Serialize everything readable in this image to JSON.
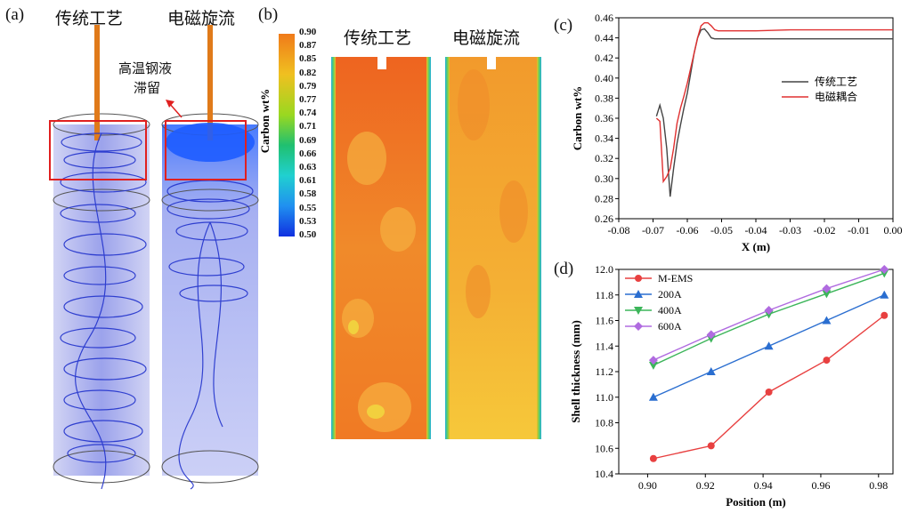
{
  "panels": {
    "a": {
      "label": "(a)",
      "col_left": "传统工艺",
      "col_right": "电磁旋流",
      "annotation_line1": "高温钢液",
      "annotation_line2": "滞留"
    },
    "b": {
      "label": "(b)",
      "col_left": "传统工艺",
      "col_right": "电磁旋流",
      "colorbar_title": "Carbon wt%",
      "colorbar_ticks": [
        "0.90",
        "0.87",
        "0.85",
        "0.82",
        "0.79",
        "0.77",
        "0.74",
        "0.71",
        "0.69",
        "0.66",
        "0.63",
        "0.61",
        "0.58",
        "0.55",
        "0.53",
        "0.50"
      ]
    },
    "c": {
      "label": "(c)"
    },
    "d": {
      "label": "(d)"
    }
  },
  "chart_data": [
    {
      "id": "c",
      "type": "line",
      "xlabel": "X (m)",
      "ylabel": "Carbon wt%",
      "xlim": [
        -0.08,
        0.0
      ],
      "ylim": [
        0.26,
        0.46
      ],
      "xticks": [
        "-0.08",
        "-0.07",
        "-0.06",
        "-0.05",
        "-0.04",
        "-0.03",
        "-0.02",
        "-0.01",
        "0.00"
      ],
      "yticks": [
        "0.26",
        "0.28",
        "0.30",
        "0.32",
        "0.34",
        "0.36",
        "0.38",
        "0.40",
        "0.42",
        "0.44",
        "0.46"
      ],
      "legend_position": "center-right",
      "series": [
        {
          "name": "传统工艺",
          "color": "#444444",
          "x": [
            -0.069,
            -0.068,
            -0.067,
            -0.066,
            -0.065,
            -0.064,
            -0.063,
            -0.062,
            -0.061,
            -0.06,
            -0.059,
            -0.058,
            -0.057,
            -0.056,
            -0.055,
            -0.054,
            -0.053,
            -0.052,
            -0.051,
            -0.05,
            -0.045,
            -0.04,
            -0.03,
            -0.02,
            -0.01,
            0.0
          ],
          "y": [
            0.362,
            0.373,
            0.36,
            0.33,
            0.282,
            0.31,
            0.335,
            0.353,
            0.37,
            0.385,
            0.405,
            0.425,
            0.44,
            0.448,
            0.449,
            0.445,
            0.44,
            0.439,
            0.439,
            0.439,
            0.439,
            0.439,
            0.439,
            0.439,
            0.439,
            0.439
          ]
        },
        {
          "name": "电磁耦合",
          "color": "#e03030",
          "x": [
            -0.069,
            -0.068,
            -0.067,
            -0.066,
            -0.065,
            -0.064,
            -0.063,
            -0.062,
            -0.061,
            -0.06,
            -0.059,
            -0.058,
            -0.057,
            -0.056,
            -0.055,
            -0.054,
            -0.053,
            -0.052,
            -0.051,
            -0.05,
            -0.045,
            -0.04,
            -0.03,
            -0.02,
            -0.01,
            0.0
          ],
          "y": [
            0.36,
            0.357,
            0.297,
            0.302,
            0.31,
            0.33,
            0.355,
            0.37,
            0.382,
            0.395,
            0.41,
            0.425,
            0.44,
            0.452,
            0.455,
            0.455,
            0.452,
            0.448,
            0.447,
            0.447,
            0.447,
            0.447,
            0.448,
            0.448,
            0.448,
            0.448
          ]
        }
      ]
    },
    {
      "id": "d",
      "type": "line",
      "xlabel": "Position (m)",
      "ylabel": "Shell thickness (mm)",
      "xlim": [
        0.89,
        0.985
      ],
      "ylim": [
        10.4,
        12.0
      ],
      "xticks": [
        "0.90",
        "0.92",
        "0.94",
        "0.96",
        "0.98"
      ],
      "yticks": [
        "10.4",
        "10.6",
        "10.8",
        "11.0",
        "11.2",
        "11.4",
        "11.6",
        "11.8",
        "12.0"
      ],
      "legend_position": "top-left",
      "x": [
        0.902,
        0.922,
        0.942,
        0.962,
        0.982
      ],
      "series": [
        {
          "name": "M-EMS",
          "color": "#e84040",
          "marker": "circle",
          "values": [
            10.52,
            10.62,
            11.04,
            11.29,
            11.64
          ]
        },
        {
          "name": "200A",
          "color": "#2a6ed0",
          "marker": "triangle-up",
          "values": [
            11.0,
            11.2,
            11.4,
            11.6,
            11.8
          ]
        },
        {
          "name": "400A",
          "color": "#3cb55a",
          "marker": "triangle-down",
          "values": [
            11.25,
            11.46,
            11.65,
            11.81,
            11.97
          ]
        },
        {
          "name": "600A",
          "color": "#b06be0",
          "marker": "diamond",
          "values": [
            11.29,
            11.49,
            11.68,
            11.85,
            12.0
          ]
        }
      ]
    }
  ]
}
